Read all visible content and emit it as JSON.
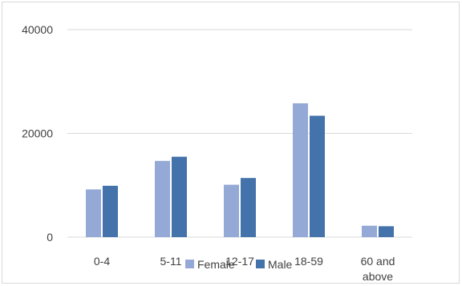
{
  "chart_data": {
    "type": "bar",
    "categories": [
      "0-4",
      "5-11",
      "12-17",
      "18-59",
      "60 and above"
    ],
    "series": [
      {
        "name": "Female",
        "values": [
          9200,
          14700,
          10100,
          25800,
          2200
        ],
        "color": "#95a9d6"
      },
      {
        "name": "Male",
        "values": [
          9900,
          15500,
          11400,
          23400,
          2100
        ],
        "color": "#4472aa"
      }
    ],
    "ylim": [
      0,
      40000
    ],
    "yticks": [
      "0",
      "20000",
      "40000"
    ],
    "ytick_values": [
      0,
      20000,
      40000
    ],
    "grid": true,
    "legend_position": "bottom-center"
  }
}
